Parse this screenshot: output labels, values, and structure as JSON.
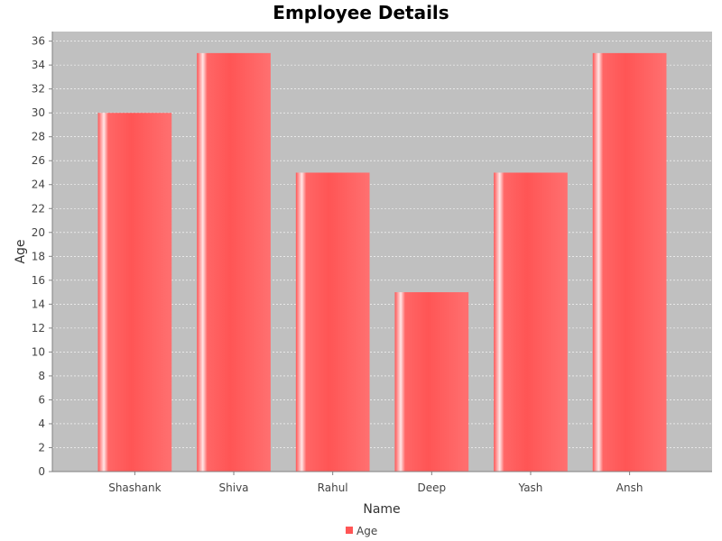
{
  "chart_data": {
    "type": "bar",
    "title": "Employee Details",
    "xlabel": "Name",
    "ylabel": "Age",
    "categories": [
      "Shashank",
      "Shiva",
      "Rahul",
      "Deep",
      "Yash",
      "Ansh"
    ],
    "series": [
      {
        "name": "Age",
        "values": [
          30,
          35,
          25,
          15,
          25,
          35
        ],
        "color": "#ff5555"
      }
    ],
    "ylim": [
      0,
      36.8
    ],
    "yticks": [
      0,
      2,
      4,
      6,
      8,
      10,
      12,
      14,
      16,
      18,
      20,
      22,
      24,
      26,
      28,
      30,
      32,
      34,
      36
    ],
    "grid": true,
    "legend_position": "bottom",
    "plot_background": "#c0c0c0",
    "grid_color": "#ffffff"
  }
}
